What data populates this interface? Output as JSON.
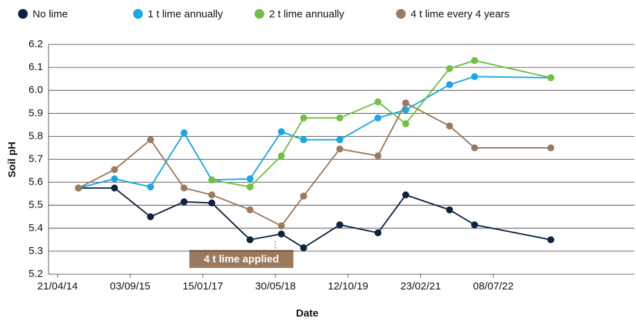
{
  "chart_data": {
    "type": "line",
    "y_label": "Soil pH",
    "x_label": "Date",
    "annotation": "4 t lime applied",
    "x": [
      "2014-09-12",
      "2015-05-18",
      "2016-01-21",
      "2016-09-08",
      "2017-03-18",
      "2017-12-06",
      "2018-07-10",
      "2018-12-10",
      "2019-08-16",
      "2020-05-05",
      "2020-11-12",
      "2021-09-10",
      "2022-03-01",
      "2023-08-08"
    ],
    "series": [
      {
        "name": "No lime",
        "color": "#0d2440",
        "values": [
          5.575,
          5.575,
          5.45,
          5.515,
          5.51,
          5.35,
          5.375,
          5.315,
          5.415,
          5.38,
          5.545,
          5.48,
          5.415,
          5.35
        ]
      },
      {
        "name": "1 t lime annually",
        "color": "#1aa7e8",
        "values": [
          5.575,
          5.615,
          5.58,
          5.815,
          5.61,
          5.615,
          5.82,
          5.785,
          5.785,
          5.88,
          5.915,
          6.025,
          6.06,
          6.055
        ]
      },
      {
        "name": "2 t lime annually",
        "color": "#72bf44",
        "values": [
          null,
          null,
          null,
          null,
          5.61,
          5.58,
          5.715,
          5.88,
          5.88,
          5.95,
          5.855,
          6.095,
          6.13,
          6.055
        ]
      },
      {
        "name": "4 t lime every 4 years",
        "color": "#9c7a5e",
        "values": [
          5.575,
          5.655,
          5.785,
          5.575,
          5.545,
          5.48,
          5.41,
          5.54,
          5.745,
          5.715,
          5.945,
          5.845,
          5.75,
          5.75
        ]
      }
    ],
    "xlim": [
      "2014-02-18",
      "2025-03-07"
    ],
    "xticks": [
      {
        "value": "2014-04-21",
        "label": "21/04/14"
      },
      {
        "value": "2015-09-03",
        "label": "03/09/15"
      },
      {
        "value": "2017-01-15",
        "label": "15/01/17"
      },
      {
        "value": "2018-05-30",
        "label": "30/05/18"
      },
      {
        "value": "2019-10-12",
        "label": "12/10/19"
      },
      {
        "value": "2021-02-23",
        "label": "23/02/21"
      },
      {
        "value": "2022-07-08",
        "label": "08/07/22"
      }
    ],
    "ylim": [
      5.2,
      6.2
    ],
    "yticks": [
      5.2,
      5.3,
      5.4,
      5.5,
      5.6,
      5.7,
      5.8,
      5.9,
      {
        "value": 6.0,
        "label": "6.0"
      },
      6.1,
      6.2
    ],
    "grid": true
  }
}
